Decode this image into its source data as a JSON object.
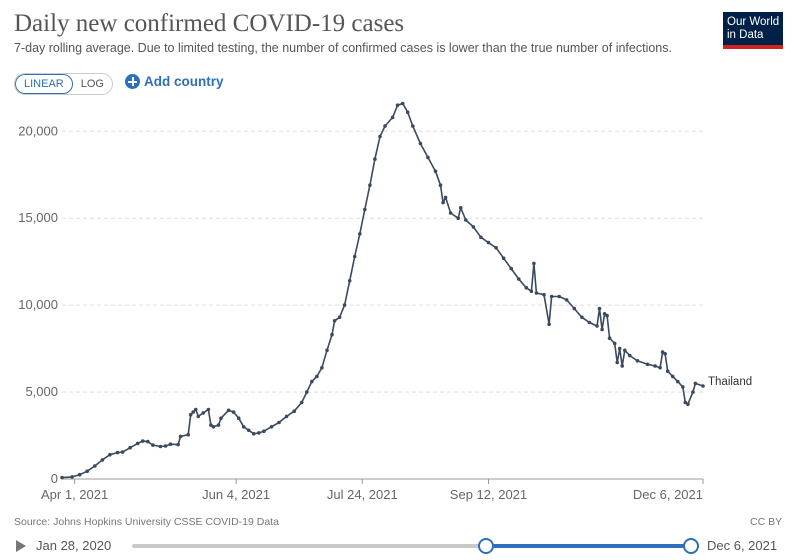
{
  "header": {
    "title": "Daily new confirmed COVID-19 cases",
    "subtitle": "7-day rolling average. Due to limited testing, the number of confirmed cases is lower than the true number of infections.",
    "logo_line1": "Our World",
    "logo_line2": "in Data"
  },
  "controls": {
    "linear_label": "LINEAR",
    "log_label": "LOG",
    "add_country_label": "Add country"
  },
  "chart_data": {
    "type": "line",
    "title": "Daily new confirmed COVID-19 cases",
    "x_range": [
      "2021-03-27",
      "2021-12-06"
    ],
    "x_ticks": [
      "Apr 1, 2021",
      "Jun 4, 2021",
      "Jul 24, 2021",
      "Sep 12, 2021",
      "Dec 6, 2021"
    ],
    "x_tick_dates": [
      "2021-04-01",
      "2021-06-04",
      "2021-07-24",
      "2021-09-12",
      "2021-12-06"
    ],
    "y_ticks": [
      "0",
      "5,000",
      "10,000",
      "15,000",
      "20,000"
    ],
    "y_tick_values": [
      0,
      5000,
      10000,
      15000,
      20000
    ],
    "ylim": [
      0,
      21800
    ],
    "grid": true,
    "series": [
      {
        "name": "Thailand",
        "color": "#3b4a5e",
        "points": [
          [
            "2021-03-27",
            80
          ],
          [
            "2021-03-31",
            120
          ],
          [
            "2021-04-03",
            250
          ],
          [
            "2021-04-06",
            450
          ],
          [
            "2021-04-09",
            750
          ],
          [
            "2021-04-12",
            1100
          ],
          [
            "2021-04-15",
            1400
          ],
          [
            "2021-04-18",
            1520
          ],
          [
            "2021-04-20",
            1550
          ],
          [
            "2021-04-23",
            1800
          ],
          [
            "2021-04-26",
            2050
          ],
          [
            "2021-04-28",
            2180
          ],
          [
            "2021-04-30",
            2150
          ],
          [
            "2021-05-02",
            1950
          ],
          [
            "2021-05-05",
            1870
          ],
          [
            "2021-05-07",
            1900
          ],
          [
            "2021-05-09",
            2000
          ],
          [
            "2021-05-12",
            1980
          ],
          [
            "2021-05-13",
            2450
          ],
          [
            "2021-05-16",
            2550
          ],
          [
            "2021-05-17",
            3700
          ],
          [
            "2021-05-18",
            3850
          ],
          [
            "2021-05-19",
            4000
          ],
          [
            "2021-05-20",
            3600
          ],
          [
            "2021-05-22",
            3800
          ],
          [
            "2021-05-24",
            4000
          ],
          [
            "2021-05-25",
            3100
          ],
          [
            "2021-05-26",
            3000
          ],
          [
            "2021-05-28",
            3100
          ],
          [
            "2021-05-29",
            3500
          ],
          [
            "2021-06-01",
            3950
          ],
          [
            "2021-06-03",
            3850
          ],
          [
            "2021-06-05",
            3500
          ],
          [
            "2021-06-07",
            3000
          ],
          [
            "2021-06-09",
            2800
          ],
          [
            "2021-06-11",
            2600
          ],
          [
            "2021-06-13",
            2650
          ],
          [
            "2021-06-15",
            2750
          ],
          [
            "2021-06-18",
            3000
          ],
          [
            "2021-06-21",
            3250
          ],
          [
            "2021-06-24",
            3600
          ],
          [
            "2021-06-27",
            3900
          ],
          [
            "2021-06-30",
            4400
          ],
          [
            "2021-07-02",
            5000
          ],
          [
            "2021-07-04",
            5600
          ],
          [
            "2021-07-06",
            5900
          ],
          [
            "2021-07-08",
            6400
          ],
          [
            "2021-07-10",
            7400
          ],
          [
            "2021-07-12",
            8300
          ],
          [
            "2021-07-13",
            9100
          ],
          [
            "2021-07-15",
            9300
          ],
          [
            "2021-07-17",
            10000
          ],
          [
            "2021-07-19",
            11400
          ],
          [
            "2021-07-21",
            12800
          ],
          [
            "2021-07-23",
            14100
          ],
          [
            "2021-07-25",
            15500
          ],
          [
            "2021-07-27",
            16900
          ],
          [
            "2021-07-29",
            18400
          ],
          [
            "2021-07-31",
            19700
          ],
          [
            "2021-08-02",
            20300
          ],
          [
            "2021-08-05",
            20800
          ],
          [
            "2021-08-07",
            21500
          ],
          [
            "2021-08-09",
            21600
          ],
          [
            "2021-08-11",
            21100
          ],
          [
            "2021-08-13",
            20300
          ],
          [
            "2021-08-16",
            19300
          ],
          [
            "2021-08-19",
            18500
          ],
          [
            "2021-08-22",
            17700
          ],
          [
            "2021-08-24",
            16900
          ],
          [
            "2021-08-25",
            15900
          ],
          [
            "2021-08-26",
            16200
          ],
          [
            "2021-08-28",
            15300
          ],
          [
            "2021-08-31",
            15000
          ],
          [
            "2021-09-01",
            15600
          ],
          [
            "2021-09-03",
            14900
          ],
          [
            "2021-09-06",
            14500
          ],
          [
            "2021-09-09",
            13900
          ],
          [
            "2021-09-12",
            13600
          ],
          [
            "2021-09-15",
            13300
          ],
          [
            "2021-09-18",
            12700
          ],
          [
            "2021-09-21",
            12100
          ],
          [
            "2021-09-24",
            11500
          ],
          [
            "2021-09-27",
            11000
          ],
          [
            "2021-09-29",
            10800
          ],
          [
            "2021-09-30",
            12400
          ],
          [
            "2021-10-01",
            10700
          ],
          [
            "2021-10-04",
            10600
          ],
          [
            "2021-10-06",
            8900
          ],
          [
            "2021-10-07",
            10500
          ],
          [
            "2021-10-10",
            10500
          ],
          [
            "2021-10-13",
            10300
          ],
          [
            "2021-10-16",
            9800
          ],
          [
            "2021-10-19",
            9300
          ],
          [
            "2021-10-22",
            9000
          ],
          [
            "2021-10-25",
            8800
          ],
          [
            "2021-10-26",
            9800
          ],
          [
            "2021-10-27",
            8600
          ],
          [
            "2021-10-28",
            9500
          ],
          [
            "2021-10-29",
            9400
          ],
          [
            "2021-10-30",
            8100
          ],
          [
            "2021-11-01",
            7800
          ],
          [
            "2021-11-02",
            6700
          ],
          [
            "2021-11-03",
            7500
          ],
          [
            "2021-11-04",
            6500
          ],
          [
            "2021-11-05",
            7400
          ],
          [
            "2021-11-07",
            7100
          ],
          [
            "2021-11-10",
            6800
          ],
          [
            "2021-11-14",
            6600
          ],
          [
            "2021-11-17",
            6500
          ],
          [
            "2021-11-19",
            6400
          ],
          [
            "2021-11-20",
            7300
          ],
          [
            "2021-11-21",
            7200
          ],
          [
            "2021-11-22",
            6200
          ],
          [
            "2021-11-24",
            5900
          ],
          [
            "2021-11-26",
            5600
          ],
          [
            "2021-11-28",
            5300
          ],
          [
            "2021-11-29",
            4400
          ],
          [
            "2021-11-30",
            4300
          ],
          [
            "2021-12-02",
            5000
          ],
          [
            "2021-12-03",
            5500
          ],
          [
            "2021-12-06",
            5350
          ]
        ]
      }
    ]
  },
  "footer": {
    "source": "Source: Johns Hopkins University CSSE COVID-19 Data",
    "license": "CC BY"
  },
  "timeline": {
    "start_label": "Jan 28, 2020",
    "end_label": "Dec 6, 2021",
    "range_start_fraction": 0.631,
    "range_end_fraction": 1.0
  }
}
